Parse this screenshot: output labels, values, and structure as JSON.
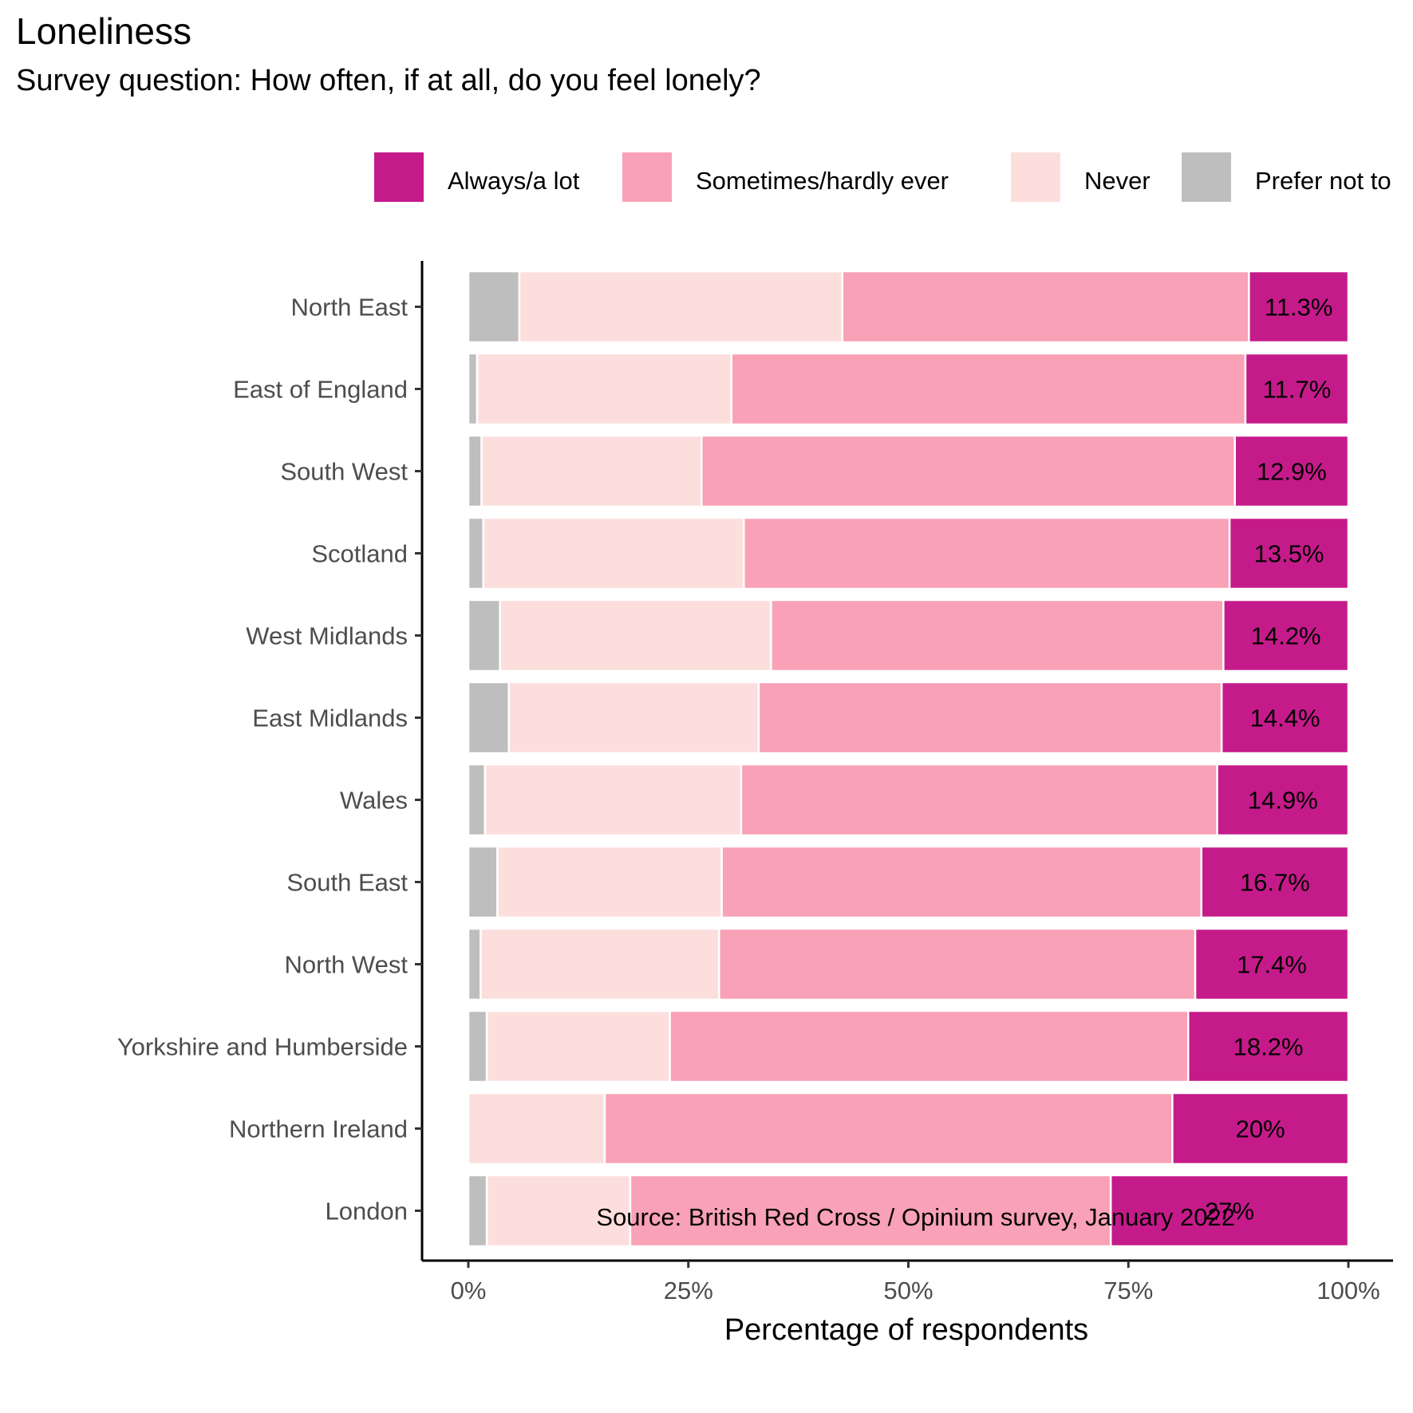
{
  "title": "Loneliness",
  "subtitle": "Survey question: How often, if at all, do you feel lonely?",
  "caption": "Source: British Red Cross / Opinium survey, January 2022",
  "chart_data": {
    "type": "bar",
    "orientation": "horizontal",
    "stacked": true,
    "xlabel": "Percentage of respondents",
    "ylabel": "",
    "xlim": [
      0,
      100
    ],
    "x_ticks": [
      "0%",
      "25%",
      "50%",
      "75%",
      "100%"
    ],
    "legend_position": "top",
    "categories": [
      "North East",
      "East of England",
      "South West",
      "Scotland",
      "West Midlands",
      "East Midlands",
      "Wales",
      "South East",
      "North West",
      "Yorkshire and Humberside",
      "Northern Ireland",
      "London"
    ],
    "series": [
      {
        "name": "Prefer not to say",
        "color": "#bebebe",
        "values": [
          5.8,
          1.0,
          1.5,
          1.7,
          3.6,
          4.6,
          1.9,
          3.3,
          1.4,
          2.1,
          0.0,
          2.1
        ]
      },
      {
        "name": "Never",
        "color": "#fcdfdd",
        "values": [
          36.7,
          28.9,
          25.0,
          29.6,
          30.8,
          28.4,
          29.1,
          25.5,
          27.1,
          20.8,
          15.5,
          16.3
        ]
      },
      {
        "name": "Sometimes/hardly ever",
        "color": "#f9a1b6",
        "values": [
          46.2,
          58.4,
          60.6,
          55.2,
          51.4,
          52.6,
          54.1,
          54.5,
          54.1,
          58.9,
          64.5,
          54.6
        ]
      },
      {
        "name": "Always/a lot",
        "color": "#c51b8a",
        "values": [
          11.3,
          11.7,
          12.9,
          13.5,
          14.2,
          14.4,
          14.9,
          16.7,
          17.4,
          18.2,
          20.0,
          27.0
        ]
      }
    ],
    "bar_labels": [
      "11.3%",
      "11.7%",
      "12.9%",
      "13.5%",
      "14.2%",
      "14.4%",
      "14.9%",
      "16.7%",
      "17.4%",
      "18.2%",
      "20%",
      "27%"
    ],
    "legend": [
      {
        "label": "Always/a lot",
        "color": "#c51b8a"
      },
      {
        "label": "Sometimes/hardly ever",
        "color": "#f9a1b6"
      },
      {
        "label": "Never",
        "color": "#fcdfdd"
      },
      {
        "label": "Prefer not to",
        "color": "#bebebe"
      }
    ]
  }
}
